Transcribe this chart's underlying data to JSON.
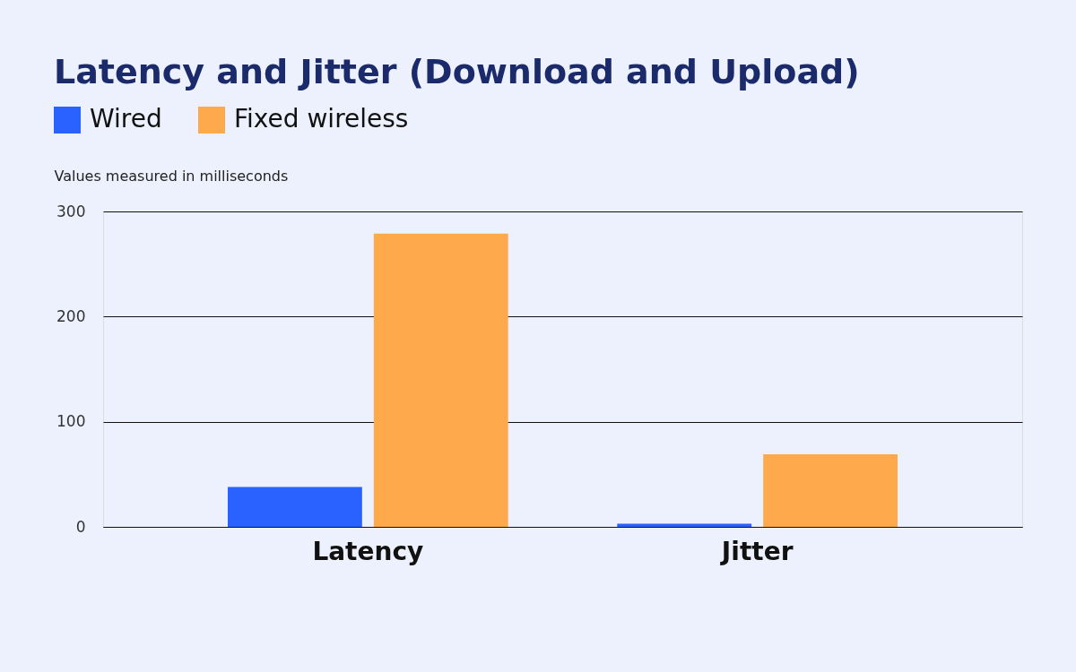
{
  "chart_data": {
    "type": "bar",
    "title": "Latency and Jitter (Download and Upload)",
    "ylabel": "Values measured in milliseconds",
    "categories": [
      "Latency",
      "Jitter"
    ],
    "series": [
      {
        "name": "Wired",
        "color": "#2962ff",
        "values": [
          38,
          3
        ]
      },
      {
        "name": "Fixed wireless",
        "color": "#ffa94d",
        "values": [
          279,
          69
        ]
      }
    ],
    "ylim": [
      0,
      300
    ],
    "yticks": [
      0,
      100,
      200,
      300
    ],
    "grid": "y",
    "legend": "top left"
  }
}
